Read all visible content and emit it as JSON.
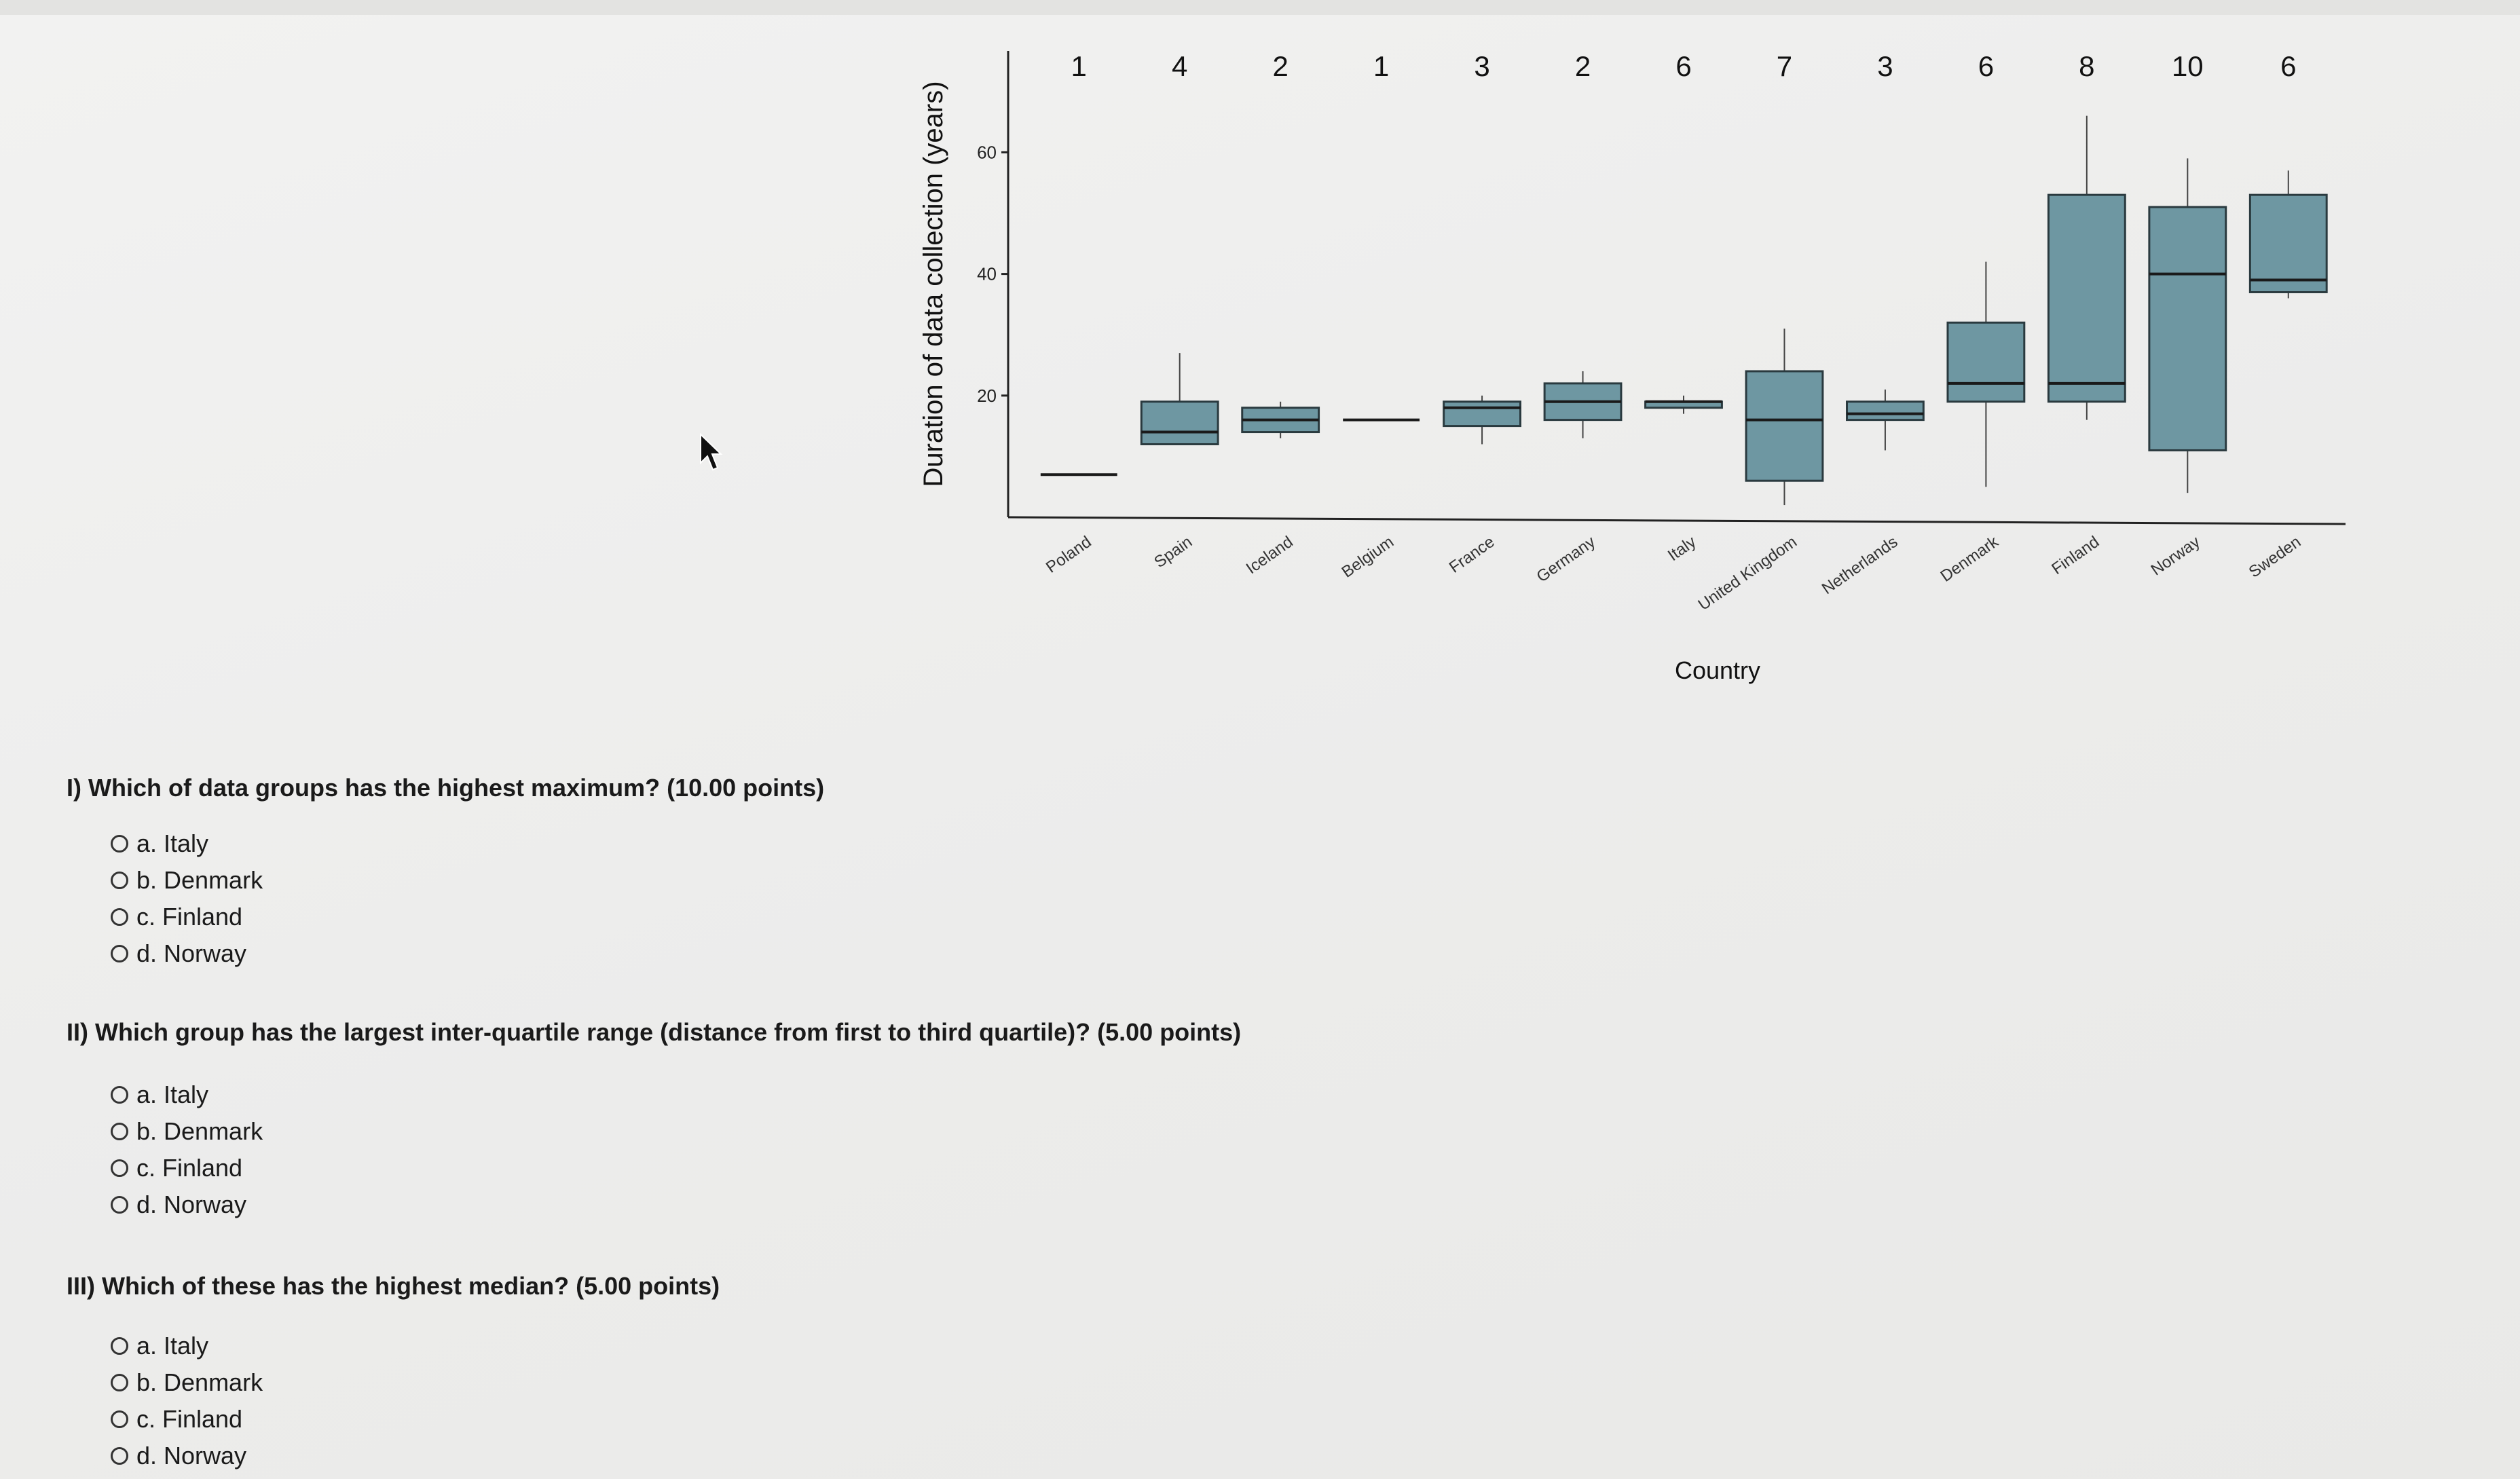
{
  "chart_data": {
    "type": "boxplot",
    "xlabel": "Country",
    "ylabel": "Duration of data collection (years)",
    "y_ticks": [
      20,
      40,
      60
    ],
    "ylim": [
      0,
      75
    ],
    "categories": [
      "Poland",
      "Spain",
      "Iceland",
      "Belgium",
      "France",
      "Germany",
      "Italy",
      "United Kingdom",
      "Netherlands",
      "Denmark",
      "Finland",
      "Norway",
      "Sweden"
    ],
    "counts": [
      1,
      4,
      2,
      1,
      3,
      2,
      6,
      7,
      3,
      6,
      8,
      10,
      6
    ],
    "boxes": [
      {
        "min": 7,
        "q1": 7,
        "median": 7,
        "q3": 7,
        "max": 7
      },
      {
        "min": 12,
        "q1": 12,
        "median": 14,
        "q3": 19,
        "max": 27
      },
      {
        "min": 13,
        "q1": 14,
        "median": 16,
        "q3": 18,
        "max": 19
      },
      {
        "min": 16,
        "q1": 16,
        "median": 16,
        "q3": 16,
        "max": 16
      },
      {
        "min": 12,
        "q1": 15,
        "median": 18,
        "q3": 19,
        "max": 20
      },
      {
        "min": 13,
        "q1": 16,
        "median": 19,
        "q3": 22,
        "max": 24
      },
      {
        "min": 17,
        "q1": 18,
        "median": 19,
        "q3": 19,
        "max": 20
      },
      {
        "min": 2,
        "q1": 6,
        "median": 16,
        "q3": 24,
        "max": 31
      },
      {
        "min": 11,
        "q1": 16,
        "median": 17,
        "q3": 19,
        "max": 21
      },
      {
        "min": 5,
        "q1": 19,
        "median": 22,
        "q3": 32,
        "max": 42
      },
      {
        "min": 16,
        "q1": 19,
        "median": 22,
        "q3": 53,
        "max": 66
      },
      {
        "min": 4,
        "q1": 11,
        "median": 40,
        "q3": 51,
        "max": 59
      },
      {
        "min": 36,
        "q1": 37,
        "median": 39,
        "q3": 53,
        "max": 57
      }
    ],
    "box_color": "#6e97a2",
    "grid": false
  },
  "questions": [
    {
      "text": "I) Which of data groups has the highest maximum? (10.00 points)",
      "options": [
        "a. Italy",
        "b. Denmark",
        "c. Finland",
        "d. Norway"
      ]
    },
    {
      "text": "II) Which group has the largest inter-quartile range (distance from first to third quartile)? (5.00 points)",
      "options": [
        "a. Italy",
        "b. Denmark",
        "c. Finland",
        "d. Norway"
      ]
    },
    {
      "text": "III) Which of these has the highest median? (5.00 points)",
      "options": [
        "a. Italy",
        "b. Denmark",
        "c. Finland",
        "d. Norway"
      ]
    }
  ]
}
